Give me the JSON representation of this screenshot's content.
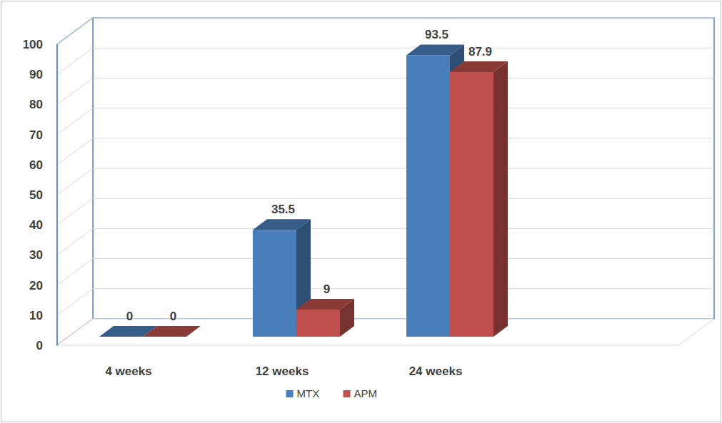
{
  "chart_data": {
    "type": "bar",
    "categories": [
      "4 weeks",
      "12 weeks",
      "24 weeks"
    ],
    "series": [
      {
        "name": "MTX",
        "color": "#4a7ebb",
        "values": [
          0,
          35.5,
          93.5
        ]
      },
      {
        "name": "APM",
        "color": "#c0504d",
        "values": [
          0,
          9,
          87.9
        ]
      }
    ],
    "ylim": [
      0,
      100
    ],
    "yticks": [
      0,
      10,
      20,
      30,
      40,
      50,
      60,
      70,
      80,
      90,
      100
    ],
    "grid": true,
    "data_labels": true,
    "legend": "bottom"
  }
}
